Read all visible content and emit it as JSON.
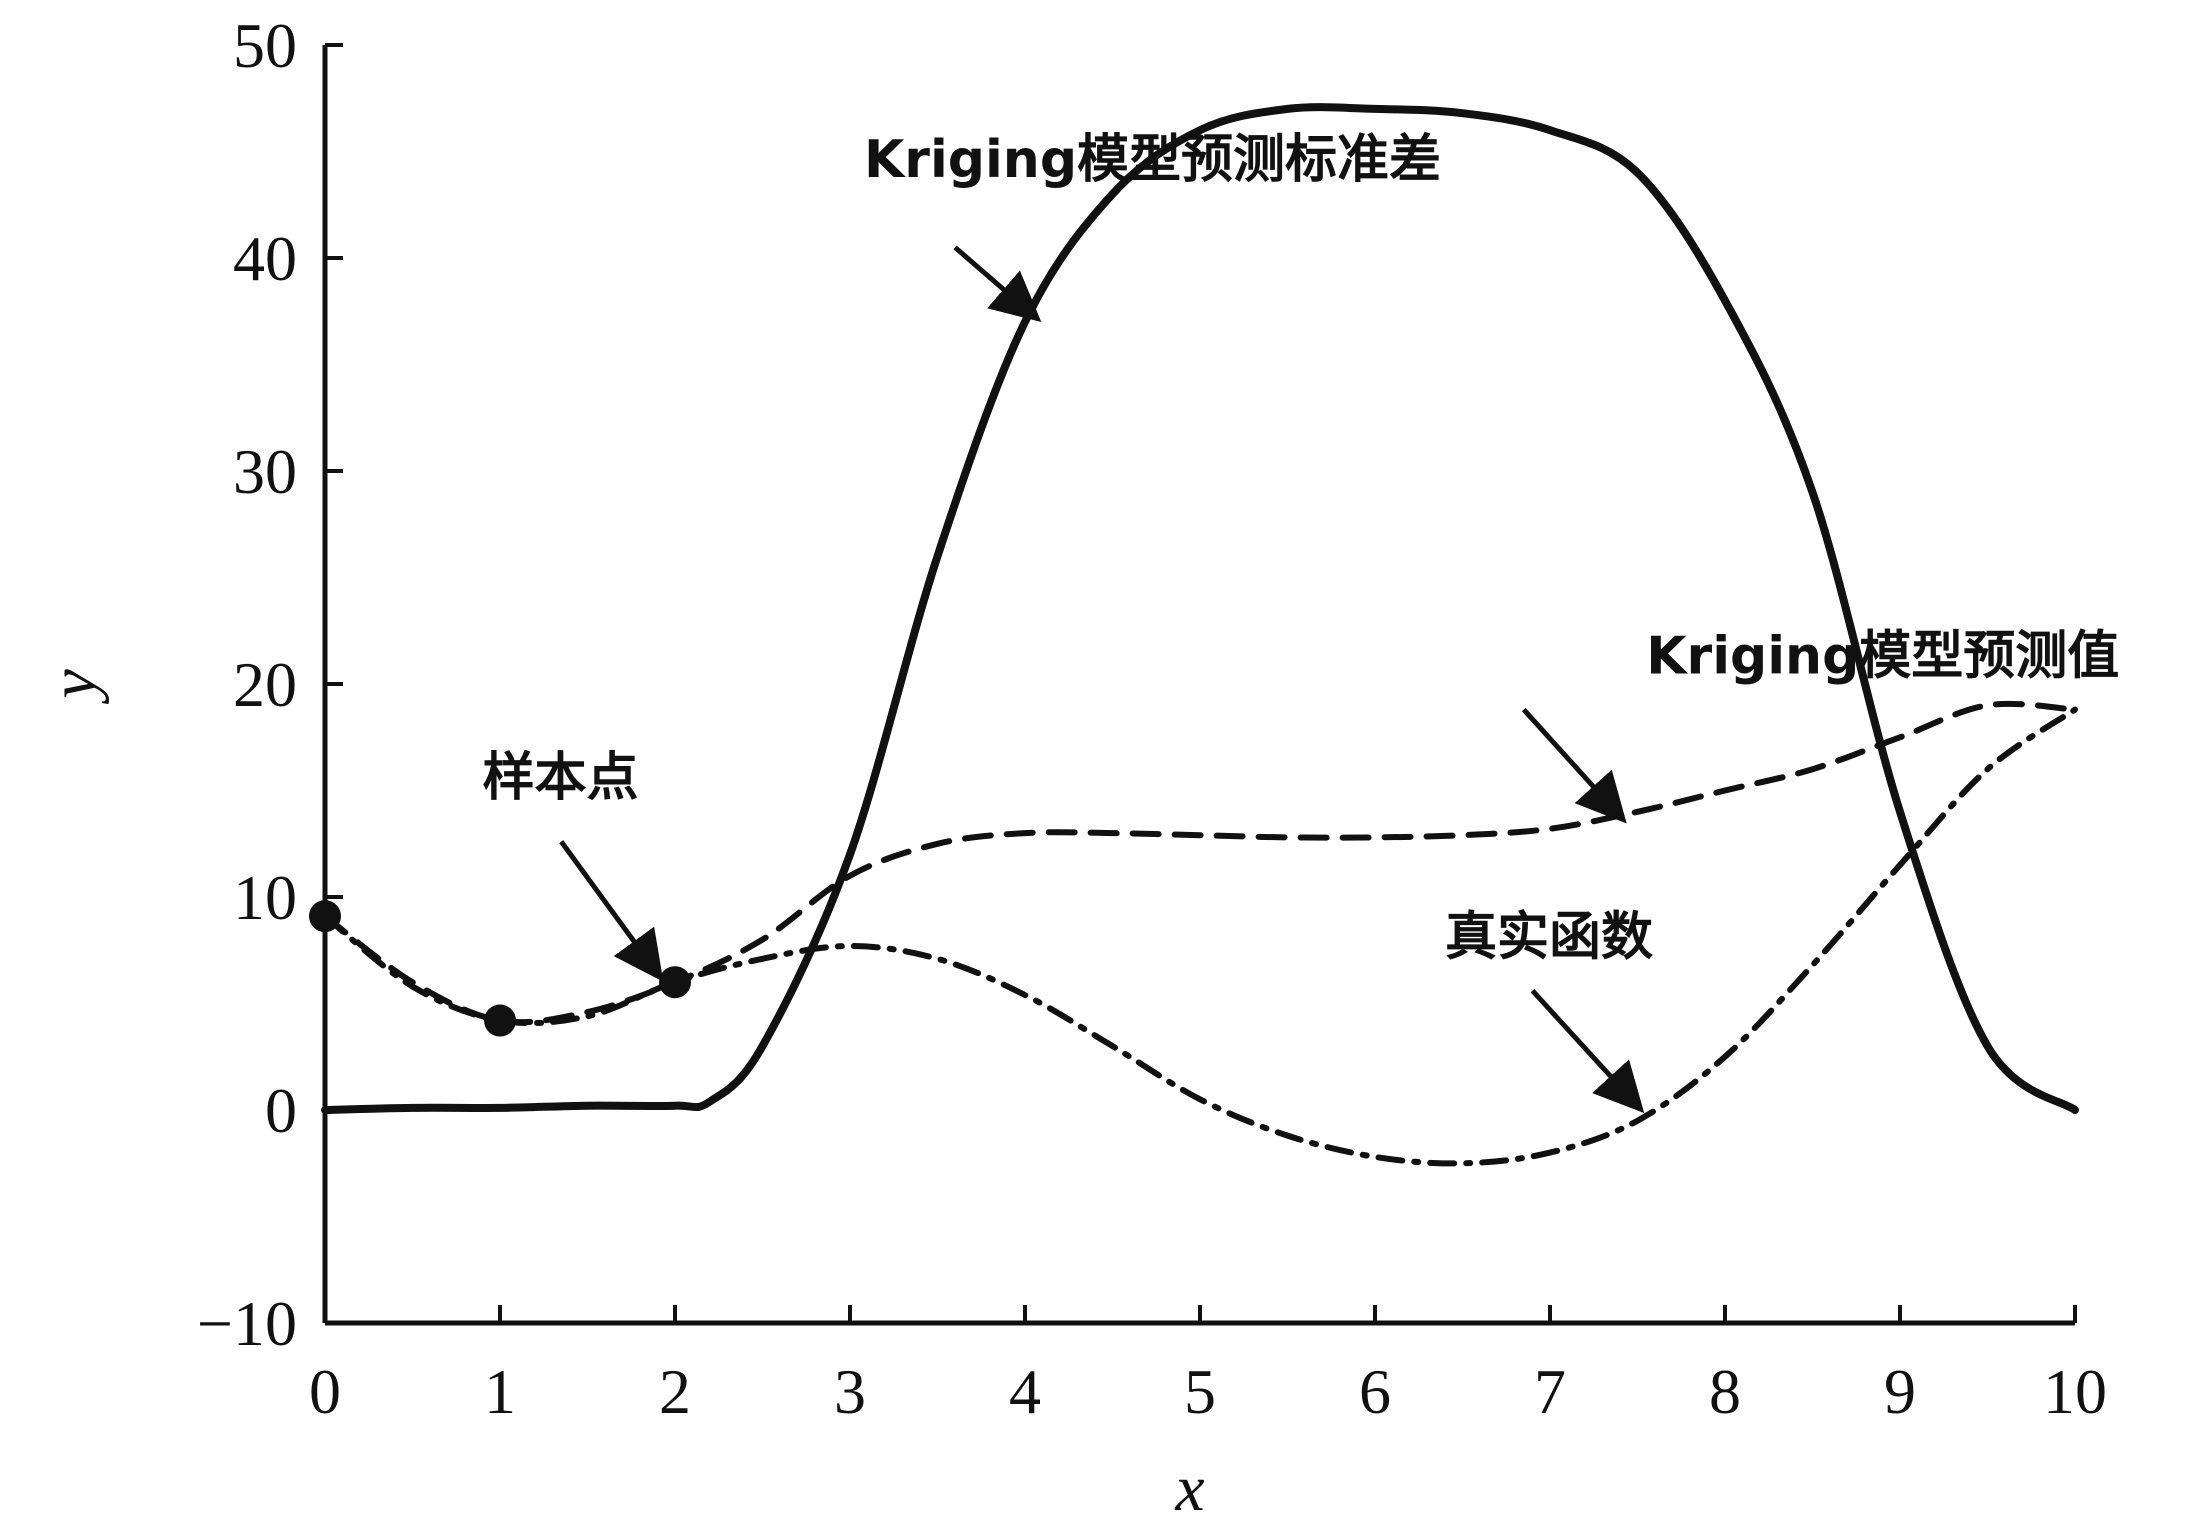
{
  "chart_data": {
    "type": "line",
    "xlabel": "x",
    "ylabel": "y",
    "xlim": [
      0,
      10
    ],
    "ylim": [
      -10,
      50
    ],
    "xticks": [
      0,
      1,
      2,
      3,
      4,
      5,
      6,
      7,
      8,
      9,
      10
    ],
    "yticks": [
      -10,
      0,
      10,
      20,
      30,
      40,
      50
    ],
    "grid": false,
    "line_color": "#111111",
    "series": [
      {
        "name": "Kriging模型预测标准差",
        "style": "solid",
        "x": [
          0,
          0.5,
          1,
          1.5,
          2,
          2.2,
          2.5,
          3,
          3.5,
          4,
          4.5,
          5,
          5.5,
          6,
          6.5,
          7,
          7.5,
          8,
          8.5,
          9,
          9.5,
          10
        ],
        "y": [
          0,
          0.1,
          0.1,
          0.2,
          0.2,
          0.4,
          3,
          12,
          26,
          37,
          43,
          46,
          47,
          47,
          46.8,
          46,
          44,
          38,
          29,
          14,
          3,
          0
        ]
      },
      {
        "name": "Kriging模型预测值",
        "style": "dashed",
        "x": [
          0,
          0.5,
          1,
          1.5,
          2,
          2.5,
          3,
          3.5,
          4,
          4.5,
          5,
          5.5,
          6,
          6.5,
          7,
          7.5,
          8,
          8.5,
          9,
          9.5,
          10
        ],
        "y": [
          9.1,
          6,
          4.2,
          4.6,
          6,
          8,
          11,
          12.5,
          13,
          13,
          12.9,
          12.8,
          12.8,
          12.9,
          13.2,
          14,
          15,
          16,
          17.5,
          19,
          18.8
        ]
      },
      {
        "name": "真实函数",
        "style": "dashdot",
        "x": [
          0,
          0.5,
          1,
          1.5,
          2,
          2.5,
          3,
          3.5,
          4,
          4.5,
          5,
          5.5,
          6,
          6.5,
          7,
          7.5,
          8,
          8.5,
          9,
          9.5,
          10
        ],
        "y": [
          9.1,
          5.8,
          4.2,
          4.4,
          6,
          7.1,
          7.7,
          7.1,
          5.4,
          3,
          0.5,
          -1.2,
          -2.2,
          -2.5,
          -2,
          -0.5,
          2.5,
          6.8,
          11.5,
          16,
          18.8
        ]
      }
    ],
    "sample_points": {
      "name": "样本点",
      "x": [
        0,
        1,
        2
      ],
      "y": [
        9.1,
        4.2,
        6.0
      ]
    },
    "annotations": [
      {
        "text": "Kriging模型预测标准差",
        "at": [
          3.08,
          43.8
        ],
        "arrow_from": [
          3.6,
          40.5
        ],
        "arrow_to": [
          4.05,
          37.3
        ]
      },
      {
        "text": "Kriging模型预测值",
        "at": [
          7.55,
          20.5
        ],
        "arrow_from": [
          6.85,
          18.8
        ],
        "arrow_to": [
          7.4,
          13.8
        ]
      },
      {
        "text": "样本点",
        "at": [
          0.9,
          14.8
        ],
        "arrow_from": [
          1.35,
          12.6
        ],
        "arrow_to": [
          1.9,
          6.4
        ]
      },
      {
        "text": "真实函数",
        "at": [
          6.4,
          7.3
        ],
        "arrow_from": [
          6.9,
          5.6
        ],
        "arrow_to": [
          7.5,
          0.2
        ]
      }
    ]
  }
}
